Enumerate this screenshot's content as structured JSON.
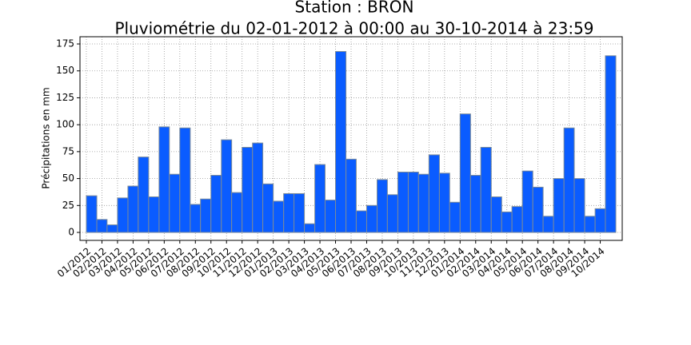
{
  "chart_data": {
    "type": "histogram",
    "title": "Station : BRON",
    "subtitle": "Pluviométrie du 02-01-2012 à 00:00 au 30-10-2014 à 23:59",
    "ylabel": "Précipitations en mm",
    "bins": [
      0,
      0.67,
      1.33,
      2,
      2.67,
      3.33,
      4,
      4.67,
      5.33,
      6,
      6.67,
      7.33,
      8,
      8.67,
      9.33,
      10,
      10.67,
      11.33,
      12,
      12.67,
      13.33,
      14,
      14.67,
      15.33,
      16,
      16.67,
      17.33,
      18,
      18.67,
      19.33,
      20,
      20.67,
      21.33,
      22,
      22.67,
      23.33,
      24,
      24.67,
      25.33,
      26,
      26.67,
      27.33,
      28,
      28.67,
      29.33,
      30,
      30.67,
      31.33,
      32,
      32.67,
      33.33,
      34
    ],
    "values": [
      34,
      12,
      7,
      32,
      43,
      70,
      33,
      98,
      54,
      97,
      26,
      31,
      53,
      86,
      37,
      79,
      83,
      45,
      29,
      36,
      36,
      8,
      63,
      30,
      168,
      68,
      20,
      25,
      49,
      35,
      56,
      56,
      54,
      72,
      55,
      28,
      110,
      53,
      79,
      33,
      19,
      24,
      57,
      42,
      15,
      50,
      97,
      50,
      15,
      22,
      164
    ],
    "color": "#0a5cff",
    "edgecolor": "#7a8a99",
    "xlim": [
      -0.41,
      34.41
    ],
    "ylim": [
      -7.4,
      181.7
    ],
    "xticks": [
      {
        "value": 0,
        "label": "01/2012"
      },
      {
        "value": 1,
        "label": "02/2012"
      },
      {
        "value": 2,
        "label": "03/2012"
      },
      {
        "value": 3,
        "label": "04/2012"
      },
      {
        "value": 4,
        "label": "05/2012"
      },
      {
        "value": 5,
        "label": "06/2012"
      },
      {
        "value": 6,
        "label": "07/2012"
      },
      {
        "value": 7,
        "label": "08/2012"
      },
      {
        "value": 8,
        "label": "09/2012"
      },
      {
        "value": 9,
        "label": "10/2012"
      },
      {
        "value": 10,
        "label": "11/2012"
      },
      {
        "value": 11,
        "label": "12/2012"
      },
      {
        "value": 12,
        "label": "01/2013"
      },
      {
        "value": 13,
        "label": "02/2013"
      },
      {
        "value": 14,
        "label": "03/2013"
      },
      {
        "value": 15,
        "label": "04/2013"
      },
      {
        "value": 16,
        "label": "05/2013"
      },
      {
        "value": 17,
        "label": "06/2013"
      },
      {
        "value": 18,
        "label": "07/2013"
      },
      {
        "value": 19,
        "label": "08/2013"
      },
      {
        "value": 20,
        "label": "09/2013"
      },
      {
        "value": 21,
        "label": "10/2013"
      },
      {
        "value": 22,
        "label": "11/2013"
      },
      {
        "value": 23,
        "label": "12/2013"
      },
      {
        "value": 24,
        "label": "01/2014"
      },
      {
        "value": 25,
        "label": "02/2014"
      },
      {
        "value": 26,
        "label": "03/2014"
      },
      {
        "value": 27,
        "label": "04/2014"
      },
      {
        "value": 28,
        "label": "05/2014"
      },
      {
        "value": 29,
        "label": "06/2014"
      },
      {
        "value": 30,
        "label": "07/2014"
      },
      {
        "value": 31,
        "label": "08/2014"
      },
      {
        "value": 32,
        "label": "09/2014"
      },
      {
        "value": 33,
        "label": "10/2014"
      }
    ],
    "yticks": [
      0,
      25,
      50,
      75,
      100,
      125,
      150,
      175
    ],
    "grid": true
  }
}
